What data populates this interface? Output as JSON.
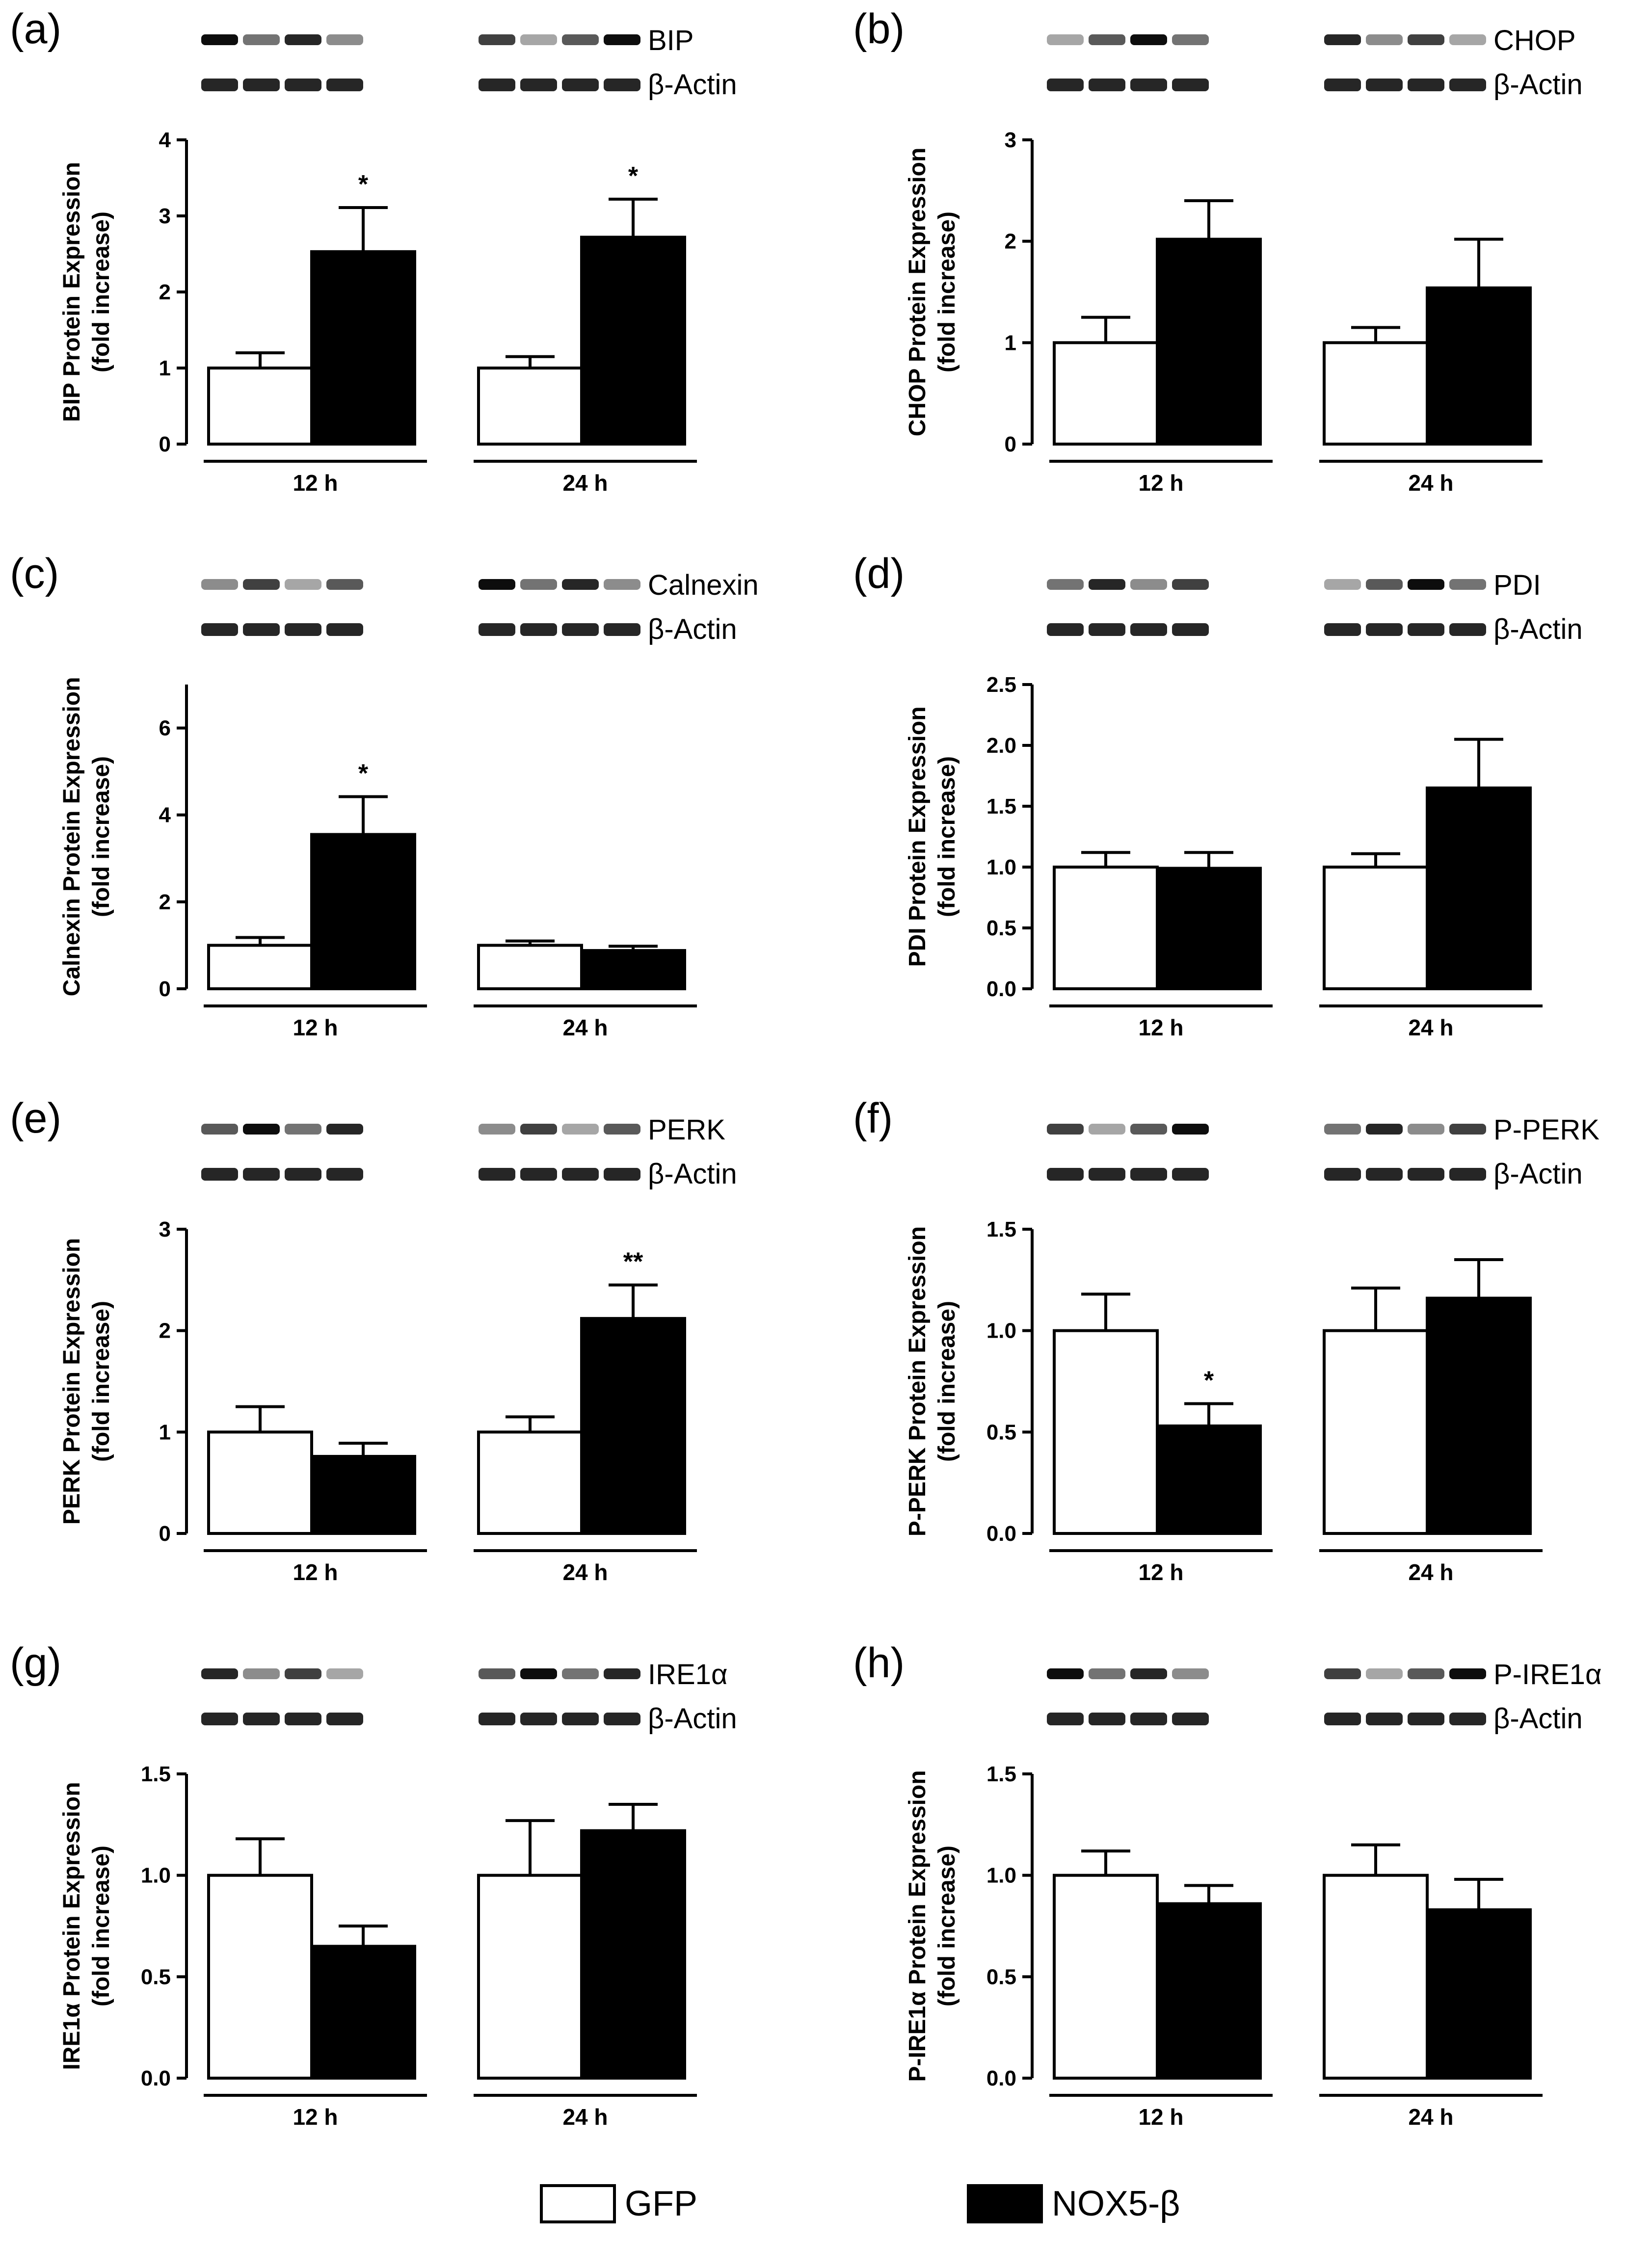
{
  "figure": {
    "legend": [
      {
        "label": "GFP",
        "color": "#ffffff"
      },
      {
        "label": "NOX5-β",
        "color": "#000000"
      }
    ]
  },
  "chart_data": [
    {
      "panel": "(a)",
      "type": "bar",
      "blot_labels": [
        "BIP",
        "β-Actin"
      ],
      "ylabel": "BIP Protein Expression (fold increase)",
      "ylabel_lines": [
        "BIP Protein Expression",
        "(fold increase)"
      ],
      "ylim": [
        0,
        4
      ],
      "yticks": [
        "0",
        "1",
        "2",
        "3",
        "4"
      ],
      "ytick_values": [
        0,
        1,
        2,
        3,
        4
      ],
      "groups": [
        "12 h",
        "24 h"
      ],
      "series": [
        {
          "name": "GFP",
          "values": [
            1.0,
            1.0
          ],
          "errors": [
            0.2,
            0.15
          ]
        },
        {
          "name": "NOX5-β",
          "values": [
            2.53,
            2.72
          ],
          "errors": [
            0.58,
            0.5
          ]
        }
      ],
      "annotations": [
        {
          "group": 0,
          "series": 1,
          "text": "*"
        },
        {
          "group": 1,
          "series": 1,
          "text": "*"
        }
      ]
    },
    {
      "panel": "(b)",
      "type": "bar",
      "blot_labels": [
        "CHOP",
        "β-Actin"
      ],
      "ylabel": "CHOP Protein Expression (fold increase)",
      "ylabel_lines": [
        "CHOP Protein Expression",
        "(fold increase)"
      ],
      "ylim": [
        0,
        3
      ],
      "yticks": [
        "0",
        "1",
        "2",
        "3"
      ],
      "ytick_values": [
        0,
        1,
        2,
        3
      ],
      "groups": [
        "12 h",
        "24 h"
      ],
      "series": [
        {
          "name": "GFP",
          "values": [
            1.0,
            1.0
          ],
          "errors": [
            0.25,
            0.15
          ]
        },
        {
          "name": "NOX5-β",
          "values": [
            2.02,
            1.54
          ],
          "errors": [
            0.38,
            0.48
          ]
        }
      ],
      "annotations": []
    },
    {
      "panel": "(c)",
      "type": "bar",
      "blot_labels": [
        "Calnexin",
        "β-Actin"
      ],
      "ylabel": "Calnexin Protein Expression (fold increase)",
      "ylabel_lines": [
        "Calnexin Protein Expression",
        "(fold increase)"
      ],
      "ylim": [
        0,
        7
      ],
      "yticks": [
        "0",
        "2",
        "4",
        "6"
      ],
      "ytick_values": [
        0,
        2,
        4,
        6
      ],
      "groups": [
        "12 h",
        "24 h"
      ],
      "series": [
        {
          "name": "GFP",
          "values": [
            1.0,
            1.0
          ],
          "errors": [
            0.18,
            0.1
          ]
        },
        {
          "name": "NOX5-β",
          "values": [
            3.55,
            0.88
          ],
          "errors": [
            0.87,
            0.1
          ]
        }
      ],
      "annotations": [
        {
          "group": 0,
          "series": 1,
          "text": "*"
        }
      ]
    },
    {
      "panel": "(d)",
      "type": "bar",
      "blot_labels": [
        "PDI",
        "β-Actin"
      ],
      "ylabel": "PDI Protein Expression (fold increase)",
      "ylabel_lines": [
        "PDI Protein Expression",
        "(fold increase)"
      ],
      "ylim": [
        0,
        2.5
      ],
      "yticks": [
        "0.0",
        "0.5",
        "1.0",
        "1.5",
        "2.0",
        "2.5"
      ],
      "ytick_values": [
        0,
        0.5,
        1,
        1.5,
        2,
        2.5
      ],
      "groups": [
        "12 h",
        "24 h"
      ],
      "series": [
        {
          "name": "GFP",
          "values": [
            1.0,
            1.0
          ],
          "errors": [
            0.12,
            0.11
          ]
        },
        {
          "name": "NOX5-β",
          "values": [
            0.99,
            1.65
          ],
          "errors": [
            0.13,
            0.4
          ]
        }
      ],
      "annotations": []
    },
    {
      "panel": "(e)",
      "type": "bar",
      "blot_labels": [
        "PERK",
        "β-Actin"
      ],
      "ylabel": "PERK Protein Expression (fold increase)",
      "ylabel_lines": [
        "PERK Protein Expression",
        "(fold increase)"
      ],
      "ylim": [
        0,
        3
      ],
      "yticks": [
        "0",
        "1",
        "2",
        "3"
      ],
      "ytick_values": [
        0,
        1,
        2,
        3
      ],
      "groups": [
        "12 h",
        "24 h"
      ],
      "series": [
        {
          "name": "GFP",
          "values": [
            1.0,
            1.0
          ],
          "errors": [
            0.25,
            0.15
          ]
        },
        {
          "name": "NOX5-β",
          "values": [
            0.76,
            2.12
          ],
          "errors": [
            0.13,
            0.33
          ]
        }
      ],
      "annotations": [
        {
          "group": 1,
          "series": 1,
          "text": "**"
        }
      ]
    },
    {
      "panel": "(f)",
      "type": "bar",
      "blot_labels": [
        "P-PERK",
        "β-Actin"
      ],
      "ylabel": "P-PERK Protein Expression (fold increase)",
      "ylabel_lines": [
        "P-PERK Protein Expression",
        "(fold increase)"
      ],
      "ylim": [
        0,
        1.5
      ],
      "yticks": [
        "0.0",
        "0.5",
        "1.0",
        "1.5"
      ],
      "ytick_values": [
        0,
        0.5,
        1,
        1.5
      ],
      "groups": [
        "12 h",
        "24 h"
      ],
      "series": [
        {
          "name": "GFP",
          "values": [
            1.0,
            1.0
          ],
          "errors": [
            0.18,
            0.21
          ]
        },
        {
          "name": "NOX5-β",
          "values": [
            0.53,
            1.16
          ],
          "errors": [
            0.11,
            0.19
          ]
        }
      ],
      "annotations": [
        {
          "group": 0,
          "series": 1,
          "text": "*"
        }
      ]
    },
    {
      "panel": "(g)",
      "type": "bar",
      "blot_labels": [
        "IRE1α",
        "β-Actin"
      ],
      "ylabel": "IRE1α Protein Expression (fold increase)",
      "ylabel_lines": [
        "IRE1α Protein Expression",
        "(fold increase)"
      ],
      "ylim": [
        0,
        1.5
      ],
      "yticks": [
        "0.0",
        "0.5",
        "1.0",
        "1.5"
      ],
      "ytick_values": [
        0,
        0.5,
        1,
        1.5
      ],
      "groups": [
        "12 h",
        "24 h"
      ],
      "series": [
        {
          "name": "GFP",
          "values": [
            1.0,
            1.0
          ],
          "errors": [
            0.18,
            0.27
          ]
        },
        {
          "name": "NOX5-β",
          "values": [
            0.65,
            1.22
          ],
          "errors": [
            0.1,
            0.13
          ]
        }
      ],
      "annotations": []
    },
    {
      "panel": "(h)",
      "type": "bar",
      "blot_labels": [
        "P-IRE1α",
        "β-Actin"
      ],
      "ylabel": "P-IRE1α Protein Expression (fold increase)",
      "ylabel_lines": [
        "P-IRE1α Protein Expression",
        "(fold increase)"
      ],
      "ylim": [
        0,
        1.5
      ],
      "yticks": [
        "0.0",
        "0.5",
        "1.0",
        "1.5"
      ],
      "ytick_values": [
        0,
        0.5,
        1,
        1.5
      ],
      "groups": [
        "12 h",
        "24 h"
      ],
      "series": [
        {
          "name": "GFP",
          "values": [
            1.0,
            1.0
          ],
          "errors": [
            0.12,
            0.15
          ]
        },
        {
          "name": "NOX5-β",
          "values": [
            0.86,
            0.83
          ],
          "errors": [
            0.09,
            0.15
          ]
        }
      ],
      "annotations": []
    }
  ]
}
